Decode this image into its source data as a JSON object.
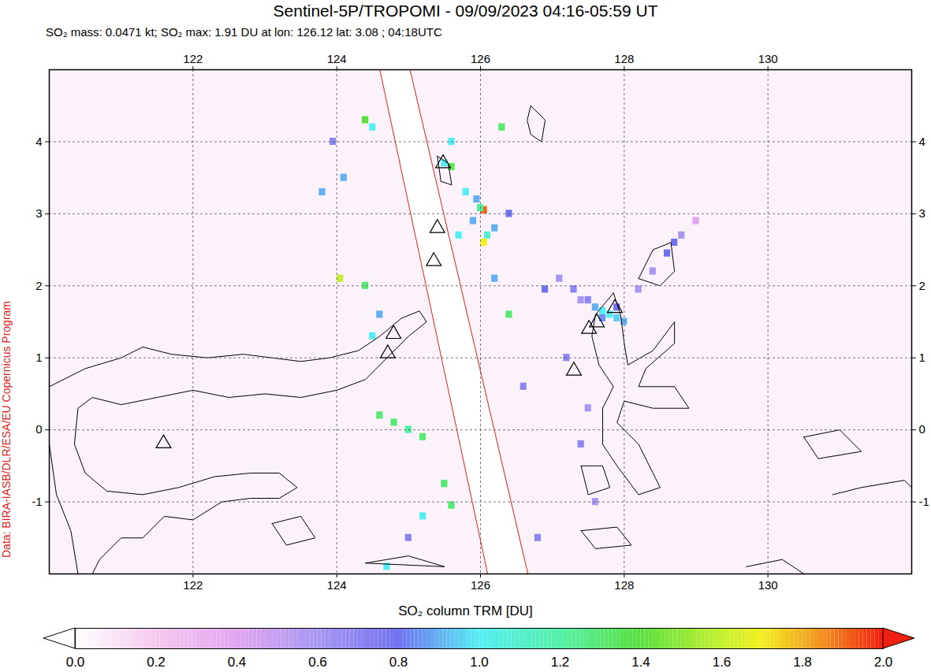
{
  "chart_data": {
    "type": "map",
    "title": "Sentinel-5P/TROPOMI - 09/09/2023 04:16-05:59 UT",
    "subtitle": "SO₂ mass: 0.0471 kt; SO₂ max: 1.91 DU at lon: 126.12 lat: 3.08 ; 04:18UTC",
    "credit": "Data: BIRA-IASB/DLR/ESA/EU Copernicus Program",
    "xlim": [
      120,
      132
    ],
    "ylim": [
      -2,
      5
    ],
    "xticks": [
      122,
      124,
      126,
      128,
      130
    ],
    "yticks": [
      -1,
      0,
      1,
      2,
      3,
      4
    ],
    "grid": true,
    "swath_gap": {
      "left_edge": [
        [
          124.6,
          5
        ],
        [
          126.1,
          -2
        ]
      ],
      "right_edge": [
        [
          125.02,
          5
        ],
        [
          126.66,
          -2
        ]
      ]
    },
    "volcanoes": [
      [
        121.59,
        -0.19
      ],
      [
        124.71,
        1.06
      ],
      [
        124.79,
        1.33
      ],
      [
        125.48,
        3.7
      ],
      [
        125.4,
        2.8
      ],
      [
        125.35,
        2.34
      ],
      [
        127.3,
        0.82
      ],
      [
        127.51,
        1.4
      ],
      [
        127.62,
        1.49
      ],
      [
        127.87,
        1.69
      ]
    ],
    "coastlines": [
      [
        [
          120,
          0.6
        ],
        [
          120.5,
          0.85
        ],
        [
          121,
          1.0
        ],
        [
          121.3,
          1.15
        ],
        [
          121.7,
          1.05
        ],
        [
          122.2,
          1.0
        ],
        [
          122.7,
          1.05
        ],
        [
          123.1,
          1.0
        ],
        [
          123.5,
          0.95
        ],
        [
          123.9,
          1.0
        ],
        [
          124.3,
          1.1
        ],
        [
          124.6,
          1.3
        ],
        [
          124.9,
          1.55
        ],
        [
          125.15,
          1.65
        ],
        [
          125.25,
          1.5
        ],
        [
          125.0,
          1.3
        ],
        [
          124.7,
          1.0
        ],
        [
          124.4,
          0.7
        ],
        [
          124.0,
          0.55
        ],
        [
          123.5,
          0.45
        ],
        [
          123.0,
          0.5
        ],
        [
          122.5,
          0.45
        ],
        [
          122.0,
          0.55
        ],
        [
          121.5,
          0.45
        ],
        [
          121.0,
          0.35
        ],
        [
          120.6,
          0.45
        ],
        [
          120.4,
          0.3
        ],
        [
          120.35,
          -0.2
        ],
        [
          120.5,
          -0.6
        ],
        [
          120.8,
          -0.85
        ],
        [
          121.3,
          -0.9
        ],
        [
          121.8,
          -0.8
        ],
        [
          122.3,
          -0.65
        ],
        [
          122.8,
          -0.6
        ],
        [
          123.2,
          -0.6
        ],
        [
          123.45,
          -0.8
        ],
        [
          123.2,
          -0.95
        ],
        [
          122.8,
          -0.95
        ],
        [
          122.4,
          -1.0
        ],
        [
          122.0,
          -1.25
        ],
        [
          121.6,
          -1.2
        ],
        [
          121.3,
          -1.5
        ],
        [
          121.0,
          -1.5
        ],
        [
          120.7,
          -1.8
        ],
        [
          120.6,
          -2.0
        ]
      ],
      [
        [
          120,
          -0.2
        ],
        [
          120.1,
          -0.9
        ],
        [
          120.3,
          -1.4
        ],
        [
          120.4,
          -2.0
        ]
      ],
      [
        [
          123.1,
          -1.3
        ],
        [
          123.5,
          -1.2
        ],
        [
          123.7,
          -1.5
        ],
        [
          123.3,
          -1.6
        ],
        [
          123.1,
          -1.3
        ]
      ],
      [
        [
          125.4,
          3.8
        ],
        [
          125.55,
          3.7
        ],
        [
          125.6,
          3.4
        ],
        [
          125.45,
          3.45
        ],
        [
          125.4,
          3.8
        ]
      ],
      [
        [
          126.7,
          4.5
        ],
        [
          126.9,
          4.3
        ],
        [
          126.85,
          4.0
        ],
        [
          126.7,
          4.1
        ],
        [
          126.65,
          4.3
        ],
        [
          126.7,
          4.5
        ]
      ],
      [
        [
          128.2,
          2.1
        ],
        [
          128.4,
          2.5
        ],
        [
          128.65,
          2.6
        ],
        [
          128.7,
          2.2
        ],
        [
          128.5,
          2.0
        ],
        [
          128.2,
          2.1
        ]
      ],
      [
        [
          127.85,
          1.9
        ],
        [
          127.95,
          1.6
        ],
        [
          128.0,
          1.2
        ],
        [
          128.05,
          0.9
        ],
        [
          128.4,
          1.1
        ],
        [
          128.7,
          1.5
        ],
        [
          128.7,
          1.2
        ],
        [
          128.3,
          0.85
        ],
        [
          128.2,
          0.6
        ],
        [
          128.7,
          0.6
        ],
        [
          128.9,
          0.3
        ],
        [
          128.4,
          0.3
        ],
        [
          128.0,
          0.4
        ],
        [
          127.9,
          0.1
        ],
        [
          128.2,
          -0.2
        ],
        [
          128.4,
          -0.6
        ],
        [
          128.5,
          -0.8
        ],
        [
          128.2,
          -0.9
        ],
        [
          127.9,
          -0.5
        ],
        [
          127.7,
          -0.2
        ],
        [
          127.7,
          0.3
        ],
        [
          127.85,
          0.6
        ],
        [
          127.65,
          0.9
        ],
        [
          127.55,
          1.3
        ],
        [
          127.6,
          1.6
        ],
        [
          127.85,
          1.9
        ]
      ],
      [
        [
          127.4,
          -0.5
        ],
        [
          127.7,
          -0.5
        ],
        [
          127.8,
          -0.8
        ],
        [
          127.5,
          -0.9
        ],
        [
          127.4,
          -0.5
        ]
      ],
      [
        [
          127.4,
          -1.4
        ],
        [
          127.9,
          -1.35
        ],
        [
          128.1,
          -1.6
        ],
        [
          127.6,
          -1.65
        ],
        [
          127.4,
          -1.4
        ]
      ],
      [
        [
          124.4,
          -1.85
        ],
        [
          125.0,
          -1.75
        ],
        [
          125.5,
          -1.9
        ],
        [
          124.4,
          -1.85
        ]
      ],
      [
        [
          130.5,
          -0.1
        ],
        [
          131.0,
          0.0
        ],
        [
          131.3,
          -0.3
        ],
        [
          130.7,
          -0.4
        ],
        [
          130.5,
          -0.1
        ]
      ],
      [
        [
          130.9,
          -0.9
        ],
        [
          131.3,
          -0.8
        ],
        [
          131.9,
          -0.7
        ],
        [
          132,
          -0.8
        ]
      ],
      [
        [
          129.7,
          -1.9
        ],
        [
          130.2,
          -1.8
        ],
        [
          130.5,
          -2.0
        ]
      ]
    ],
    "so2_pixels": [
      [
        124.4,
        4.3,
        1.4
      ],
      [
        124.5,
        4.2,
        1.0
      ],
      [
        125.6,
        3.65,
        1.35
      ],
      [
        125.5,
        3.7,
        1.0
      ],
      [
        126.05,
        3.05,
        1.91
      ],
      [
        126.0,
        3.08,
        1.2
      ],
      [
        125.95,
        3.2,
        0.9
      ],
      [
        126.05,
        2.6,
        1.7
      ],
      [
        126.1,
        2.7,
        1.1
      ],
      [
        125.8,
        3.3,
        1.0
      ],
      [
        125.9,
        2.9,
        0.9
      ],
      [
        126.2,
        2.8,
        0.9
      ],
      [
        125.7,
        2.7,
        1.0
      ],
      [
        125.6,
        4.0,
        1.0
      ],
      [
        126.3,
        4.2,
        1.3
      ],
      [
        126.4,
        3.0,
        0.8
      ],
      [
        126.2,
        2.1,
        0.9
      ],
      [
        126.4,
        1.6,
        1.3
      ],
      [
        126.6,
        0.6,
        0.7
      ],
      [
        124.05,
        2.1,
        1.6
      ],
      [
        124.4,
        2.0,
        1.3
      ],
      [
        124.1,
        3.5,
        0.9
      ],
      [
        123.95,
        4.0,
        0.7
      ],
      [
        123.8,
        3.3,
        0.9
      ],
      [
        124.5,
        1.3,
        1.0
      ],
      [
        124.6,
        1.6,
        0.9
      ],
      [
        124.6,
        0.2,
        1.3
      ],
      [
        124.8,
        0.1,
        1.3
      ],
      [
        125.0,
        0.0,
        1.2
      ],
      [
        125.2,
        -0.1,
        1.3
      ],
      [
        125.5,
        -0.75,
        1.3
      ],
      [
        125.6,
        -1.05,
        1.3
      ],
      [
        125.2,
        -1.2,
        1.0
      ],
      [
        124.7,
        -1.9,
        1.0
      ],
      [
        125.0,
        -1.5,
        0.7
      ],
      [
        127.6,
        1.7,
        0.9
      ],
      [
        127.7,
        1.65,
        1.0
      ],
      [
        127.8,
        1.6,
        1.0
      ],
      [
        127.9,
        1.55,
        0.95
      ],
      [
        127.7,
        1.55,
        0.85
      ],
      [
        128.0,
        1.5,
        0.9
      ],
      [
        127.5,
        1.8,
        0.7
      ],
      [
        127.9,
        1.7,
        0.8
      ],
      [
        128.2,
        1.95,
        0.6
      ],
      [
        128.4,
        2.2,
        0.6
      ],
      [
        128.6,
        2.45,
        0.8
      ],
      [
        128.7,
        2.6,
        0.8
      ],
      [
        128.8,
        2.7,
        0.6
      ],
      [
        129.0,
        2.9,
        0.4
      ],
      [
        127.4,
        1.8,
        0.6
      ],
      [
        127.3,
        1.95,
        0.7
      ],
      [
        127.1,
        2.1,
        0.6
      ],
      [
        126.9,
        1.95,
        0.8
      ],
      [
        127.2,
        1.0,
        0.7
      ],
      [
        127.5,
        0.3,
        0.6
      ],
      [
        127.4,
        -0.2,
        0.7
      ],
      [
        126.8,
        -1.5,
        0.7
      ],
      [
        127.6,
        -1.0,
        0.6
      ]
    ],
    "colorbar": {
      "label": "SO₂ column TRM [DU]",
      "range": [
        0,
        2
      ],
      "ticks": [
        {
          "value": 0,
          "label": "0.0"
        },
        0.2,
        0.4,
        0.6,
        0.8,
        {
          "value": 1,
          "label": "1.0"
        },
        1.2,
        1.4,
        1.6,
        1.8,
        {
          "value": 2,
          "label": "2.0"
        }
      ]
    }
  }
}
